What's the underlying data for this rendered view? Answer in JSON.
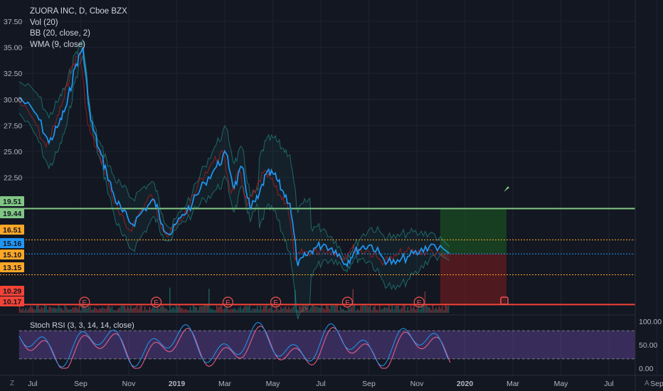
{
  "legend": {
    "symbol": "ZUORA INC, D, Cboe BZX",
    "vol": "Vol (20)",
    "bb": "BB (20, close, 2)",
    "wma": "WMA (9, close)"
  },
  "rsi": {
    "label": "Stoch RSI (3, 3, 14, 14, close)",
    "ticks": [
      "100.00",
      "50.00",
      "0.00"
    ],
    "values": [
      100,
      50,
      0
    ]
  },
  "corner": {
    "left": "Z",
    "right": "A"
  },
  "colors": {
    "background": "#131722",
    "price": "#2196f3",
    "green_level": "#81c784",
    "red_level": "#f44336",
    "orange_level": "#ffa726",
    "current_price": "#2196f3",
    "rsi_band": "#7e57c2",
    "rsi_k": "#2196f3",
    "rsi_d": "#f06292",
    "wma": "#b71c1c",
    "bb": "#26a69a",
    "profit_zone": "#1b5e20",
    "loss_zone": "#7f1d1d"
  },
  "chart_data": {
    "type": "line",
    "title": "ZUORA INC, D, Cboe BZX",
    "y_ticks": [
      37.5,
      35.0,
      32.5,
      30.0,
      27.5,
      25.0,
      22.5
    ],
    "y_tick_labels": [
      "37.50",
      "35.00",
      "32.50",
      "30.00",
      "27.50",
      "25.00",
      "22.50"
    ],
    "ylim": [
      9.5,
      39.0
    ],
    "x_ticks": [
      "Jul",
      "Sep",
      "Nov",
      "2019",
      "Mar",
      "May",
      "Jul",
      "Sep",
      "Nov",
      "2020",
      "Mar",
      "May",
      "Jul",
      "Sep"
    ],
    "price_badges": [
      {
        "value": 19.51,
        "label": "19.51",
        "color": "#81c784"
      },
      {
        "value": 19.44,
        "label": "19.44",
        "color": "#81c784"
      },
      {
        "value": 16.51,
        "label": "16.51",
        "color": "#ffa726"
      },
      {
        "value": 15.16,
        "label": "15.16",
        "color": "#2196f3"
      },
      {
        "value": 15.1,
        "label": "15.10",
        "color": "#ffa726"
      },
      {
        "value": 13.15,
        "label": "13.15",
        "color": "#ffa726"
      },
      {
        "value": 10.29,
        "label": "10.29",
        "color": "#f44336"
      },
      {
        "value": 10.17,
        "label": "10.17",
        "color": "#f44336"
      }
    ],
    "levels": [
      {
        "value": 19.51,
        "style": "solid",
        "color": "#81c784"
      },
      {
        "value": 16.51,
        "style": "dotted",
        "color": "#ffa726"
      },
      {
        "value": 15.16,
        "style": "dotted",
        "color": "#2196f3"
      },
      {
        "value": 13.15,
        "style": "dotted",
        "color": "#ffa726"
      },
      {
        "value": 10.29,
        "style": "solid",
        "color": "#f44336"
      }
    ],
    "position": {
      "entry": 15.16,
      "target": 19.51,
      "stop": 10.29,
      "start": "Dec 2019",
      "end": "Feb 2020"
    },
    "earnings": [
      "Sep 2018",
      "Dec 2018",
      "Mar 2019",
      "May 2019",
      "Aug 2019",
      "Nov 2019"
    ],
    "price": [
      [
        "Jun 2018",
        30.2
      ],
      [
        "Jul 2018",
        28.5
      ],
      [
        "Jul 2018",
        25.8
      ],
      [
        "Aug 2018",
        27.6
      ],
      [
        "Aug 2018",
        29.5
      ],
      [
        "Aug 2018",
        33.0
      ],
      [
        "Sep 2018",
        35.0
      ],
      [
        "Sep 2018",
        28.0
      ],
      [
        "Sep 2018",
        25.3
      ],
      [
        "Oct 2018",
        23.0
      ],
      [
        "Oct 2018",
        20.5
      ],
      [
        "Oct 2018",
        19.2
      ],
      [
        "Nov 2018",
        18.0
      ],
      [
        "Nov 2018",
        19.5
      ],
      [
        "Dec 2018",
        20.3
      ],
      [
        "Dec 2018",
        18.0
      ],
      [
        "Dec 2018",
        17.0
      ],
      [
        "Jan 2019",
        18.6
      ],
      [
        "Jan 2019",
        20.0
      ],
      [
        "Feb 2019",
        22.0
      ],
      [
        "Feb 2019",
        23.5
      ],
      [
        "Mar 2019",
        24.8
      ],
      [
        "Mar 2019",
        21.5
      ],
      [
        "Mar 2019",
        23.5
      ],
      [
        "Apr 2019",
        19.5
      ],
      [
        "Apr 2019",
        20.5
      ],
      [
        "Apr 2019",
        22.8
      ],
      [
        "May 2019",
        22.8
      ],
      [
        "May 2019",
        21.3
      ],
      [
        "May 2019",
        20.0
      ],
      [
        "Jun 2019",
        14.0
      ],
      [
        "Jun 2019",
        15.0
      ],
      [
        "Jun 2019",
        15.7
      ],
      [
        "Jul 2019",
        16.1
      ],
      [
        "Jul 2019",
        15.5
      ],
      [
        "Aug 2019",
        14.2
      ],
      [
        "Aug 2019",
        15.3
      ],
      [
        "Aug 2019",
        15.8
      ],
      [
        "Sep 2019",
        16.0
      ],
      [
        "Sep 2019",
        14.7
      ],
      [
        "Oct 2019",
        14.2
      ],
      [
        "Oct 2019",
        14.9
      ],
      [
        "Nov 2019",
        15.3
      ],
      [
        "Nov 2019",
        16.1
      ],
      [
        "Dec 2019",
        15.2
      ]
    ],
    "wma_description": "WMA (9, close)",
    "bb_description": "BB (20, close, 2)",
    "vol_description": "Vol (20)"
  }
}
